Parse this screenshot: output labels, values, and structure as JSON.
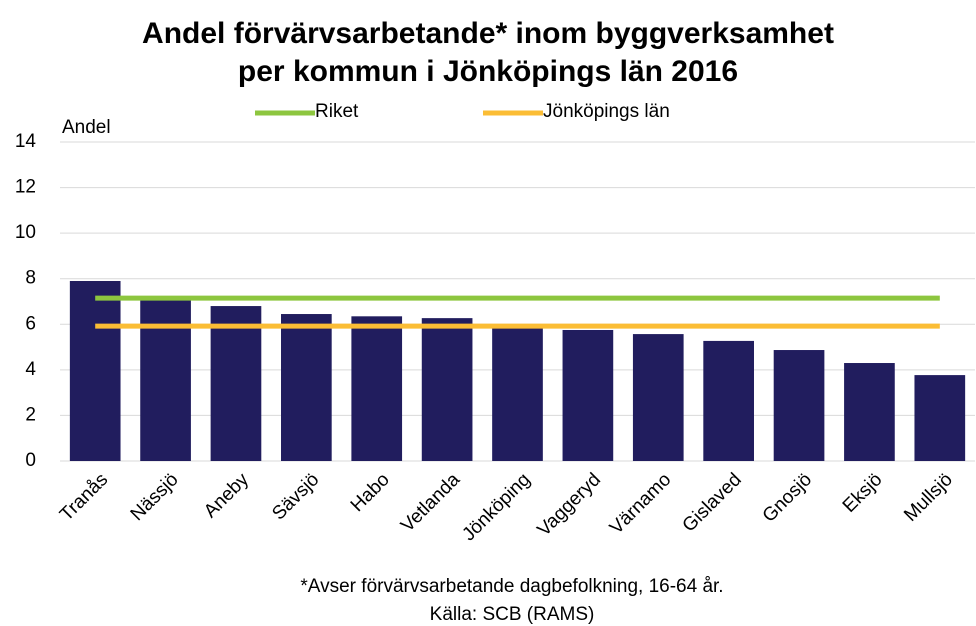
{
  "chart_data": {
    "type": "bar",
    "title": "Andel förvärvsarbetande* inom byggverksamhet",
    "subtitle": "per kommun i Jönköpings län 2016",
    "y_label": "Andel",
    "footnote": "*Avser förvärvsarbetande dagbefolkning, 16-64 år.",
    "source": "Källa: SCB (RAMS)",
    "categories": [
      "Tranås",
      "Nässjö",
      "Aneby",
      "Sävsjö",
      "Habo",
      "Vetlanda",
      "Jönköping",
      "Vaggeryd",
      "Värnamo",
      "Gislaved",
      "Gnosjö",
      "Eksjö",
      "Mullsjö"
    ],
    "values": [
      7.9,
      7.1,
      6.8,
      6.45,
      6.35,
      6.27,
      5.9,
      5.75,
      5.57,
      5.27,
      4.87,
      4.3,
      3.77
    ],
    "color": "#211d5e",
    "series": [
      {
        "name": "Riket",
        "color": "#8dc63f",
        "values": [
          7.15,
          7.15,
          7.15,
          7.15,
          7.15,
          7.15,
          7.15,
          7.15,
          7.15,
          7.15,
          7.15,
          7.15,
          7.15
        ]
      },
      {
        "name": "Jönköpings län",
        "color": "#fbbd35",
        "values": [
          5.92,
          5.92,
          5.92,
          5.92,
          5.92,
          5.92,
          5.92,
          5.92,
          5.92,
          5.92,
          5.92,
          5.92,
          5.92
        ]
      }
    ],
    "ylim": [
      0,
      14
    ],
    "yticks": [
      0,
      2,
      4,
      6,
      8,
      10,
      12,
      14
    ],
    "grid": true
  }
}
